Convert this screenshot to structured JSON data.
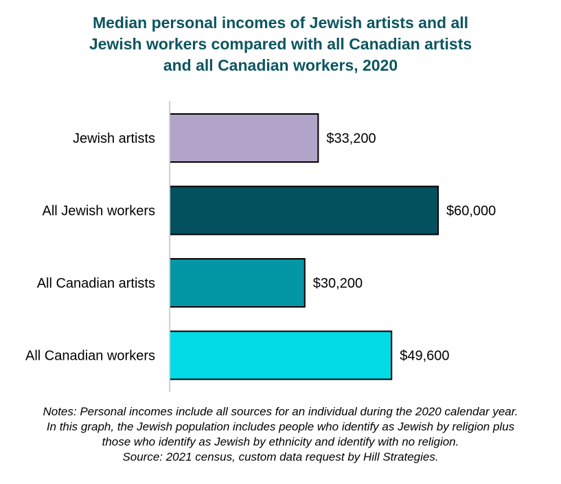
{
  "title_lines": [
    "Median personal incomes of Jewish artists and all",
    "Jewish workers compared with all Canadian artists",
    "and all Canadian workers, 2020"
  ],
  "notes_lines": [
    "Notes: Personal incomes include all sources for an individual during the 2020 calendar year.",
    "In this graph, the Jewish population includes people who identify as Jewish by religion plus",
    "those who identify as Jewish by ethnicity and identify with no religion.",
    "Source: 2021 census, custom data request by Hill Strategies."
  ],
  "chart_data": {
    "type": "bar",
    "orientation": "horizontal",
    "title": "Median personal incomes of Jewish artists and all Jewish workers compared with all Canadian artists and all Canadian workers, 2020",
    "categories": [
      "Jewish artists",
      "All Jewish workers",
      "All Canadian artists",
      "All Canadian workers"
    ],
    "values": [
      33200,
      60000,
      30200,
      49600
    ],
    "data_labels": [
      "$33,200",
      "$60,000",
      "$30,200",
      "$49,600"
    ],
    "colors": [
      "#b2a3c8",
      "#03505f",
      "#0396a5",
      "#00dbe5"
    ],
    "xlim": [
      0,
      60000
    ],
    "grid": false,
    "legend": "none"
  }
}
